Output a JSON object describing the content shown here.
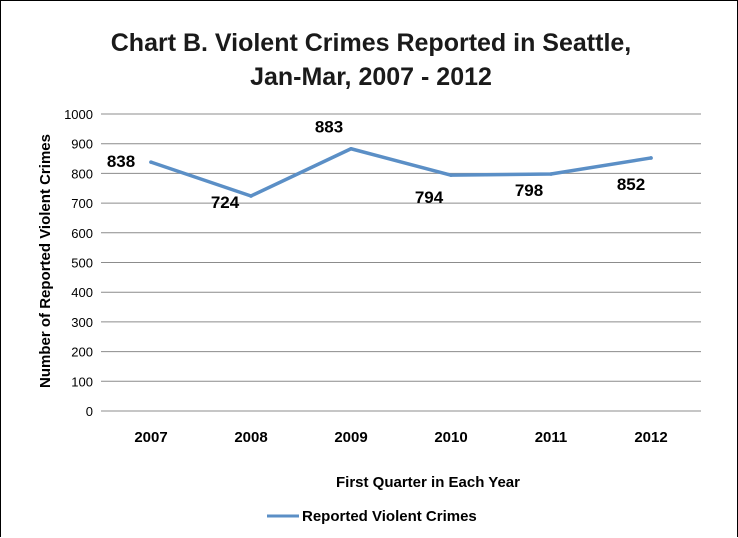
{
  "chart_data": {
    "type": "line",
    "title_lines": [
      "Chart B. Violent Crimes Reported in Seattle,",
      "Jan-Mar, 2007 - 2012"
    ],
    "xlabel": "First Quarter in Each  Year",
    "ylabel": "Number of Reported Violent Crimes",
    "categories": [
      "2007",
      "2008",
      "2009",
      "2010",
      "2011",
      "2012"
    ],
    "series": [
      {
        "name": "Reported Violent Crimes",
        "values": [
          838,
          724,
          883,
          794,
          798,
          852
        ],
        "data_labels": [
          "838",
          "724",
          "883",
          "794",
          "798",
          "852"
        ],
        "color": "#5b8fc6"
      }
    ],
    "ylim": [
      0,
      1000
    ],
    "yticks": [
      "0",
      "100",
      "200",
      "300",
      "400",
      "500",
      "600",
      "700",
      "800",
      "900",
      "1000"
    ],
    "grid": "horizontal",
    "legend": "bottom"
  }
}
